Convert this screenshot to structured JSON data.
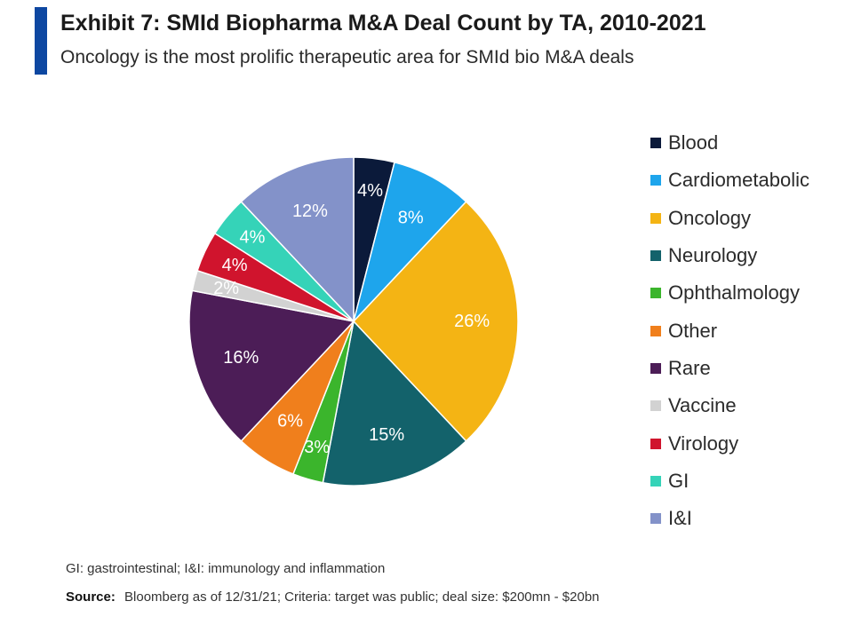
{
  "header": {
    "title": "Exhibit 7: SMId Biopharma M&A Deal Count by TA, 2010-2021",
    "subtitle": "Oncology is the most prolific therapeutic area for SMId bio M&A deals",
    "accent_color": "#0d47a1"
  },
  "chart_data": {
    "type": "pie",
    "title": "Exhibit 7: SMId Biopharma M&A Deal Count by TA, 2010-2021",
    "legend_position": "right",
    "slices": [
      {
        "name": "Blood",
        "value": 4,
        "label": "4%",
        "color": "#0b1a3a"
      },
      {
        "name": "Cardiometabolic",
        "value": 8,
        "label": "8%",
        "color": "#1ea5ec"
      },
      {
        "name": "Oncology",
        "value": 26,
        "label": "26%",
        "color": "#f4b414"
      },
      {
        "name": "Neurology",
        "value": 15,
        "label": "15%",
        "color": "#13626b"
      },
      {
        "name": "Ophthalmology",
        "value": 3,
        "label": "3%",
        "color": "#3bb52c"
      },
      {
        "name": "Other",
        "value": 6,
        "label": "6%",
        "color": "#f07f1c"
      },
      {
        "name": "Rare",
        "value": 16,
        "label": "16%",
        "color": "#4c1d57"
      },
      {
        "name": "Vaccine",
        "value": 2,
        "label": "2%",
        "color": "#d2d2d2"
      },
      {
        "name": "Virology",
        "value": 4,
        "label": "4%",
        "color": "#d0142d"
      },
      {
        "name": "GI",
        "value": 4,
        "label": "4%",
        "color": "#35d3b8"
      },
      {
        "name": "I&I",
        "value": 12,
        "label": "12%",
        "color": "#8392c9"
      }
    ]
  },
  "footer": {
    "footnote": "GI: gastrointestinal; I&I: immunology and inflammation",
    "source_label": "Source:",
    "source_text": "Bloomberg as of 12/31/21; Criteria: target was public; deal size: $200mn - $20bn"
  }
}
